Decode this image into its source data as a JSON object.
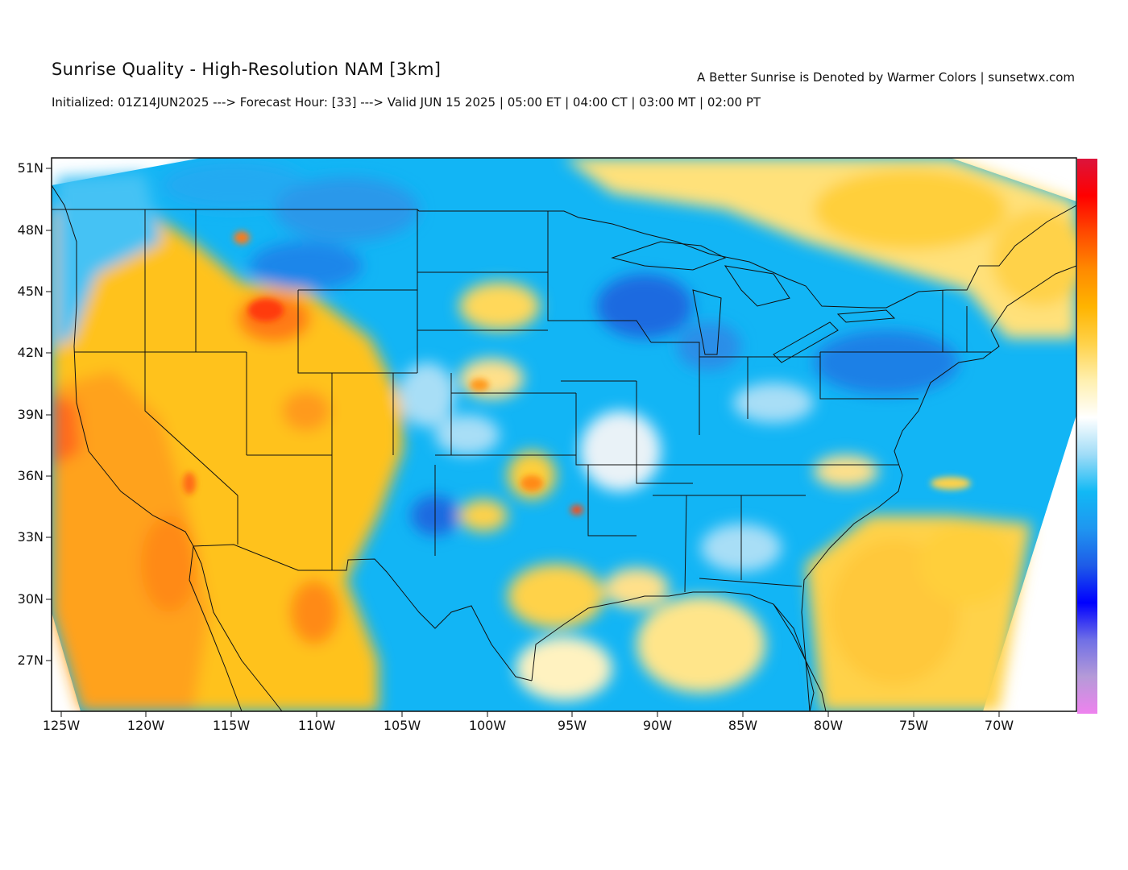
{
  "header": {
    "title": "Sunrise Quality - High-Resolution NAM [3km]",
    "tagline": "A Better Sunrise is Denoted by Warmer Colors | sunsetwx.com",
    "subtitle": "Initialized: 01Z14JUN2025 ---> Forecast Hour: [33] ---> Valid JUN 15 2025 | 05:00 ET | 04:00 CT | 03:00 MT | 02:00 PT"
  },
  "map": {
    "lat_labels": [
      "51N",
      "48N",
      "45N",
      "42N",
      "39N",
      "36N",
      "33N",
      "30N",
      "27N"
    ],
    "lon_labels": [
      "125W",
      "120W",
      "115W",
      "110W",
      "105W",
      "100W",
      "95W",
      "90W",
      "85W",
      "80W",
      "75W",
      "70W"
    ],
    "colorbar": {
      "colors": [
        "#ee82ee",
        "#b59ad8",
        "#6f6fe6",
        "#0000ff",
        "#1e5be8",
        "#1f96f0",
        "#11b9f5",
        "#9fdcf7",
        "#ffffff",
        "#fff0b0",
        "#ffd24a",
        "#ffb400",
        "#ff8a00",
        "#ff4a00",
        "#ff0000",
        "#dc143c"
      ]
    }
  }
}
